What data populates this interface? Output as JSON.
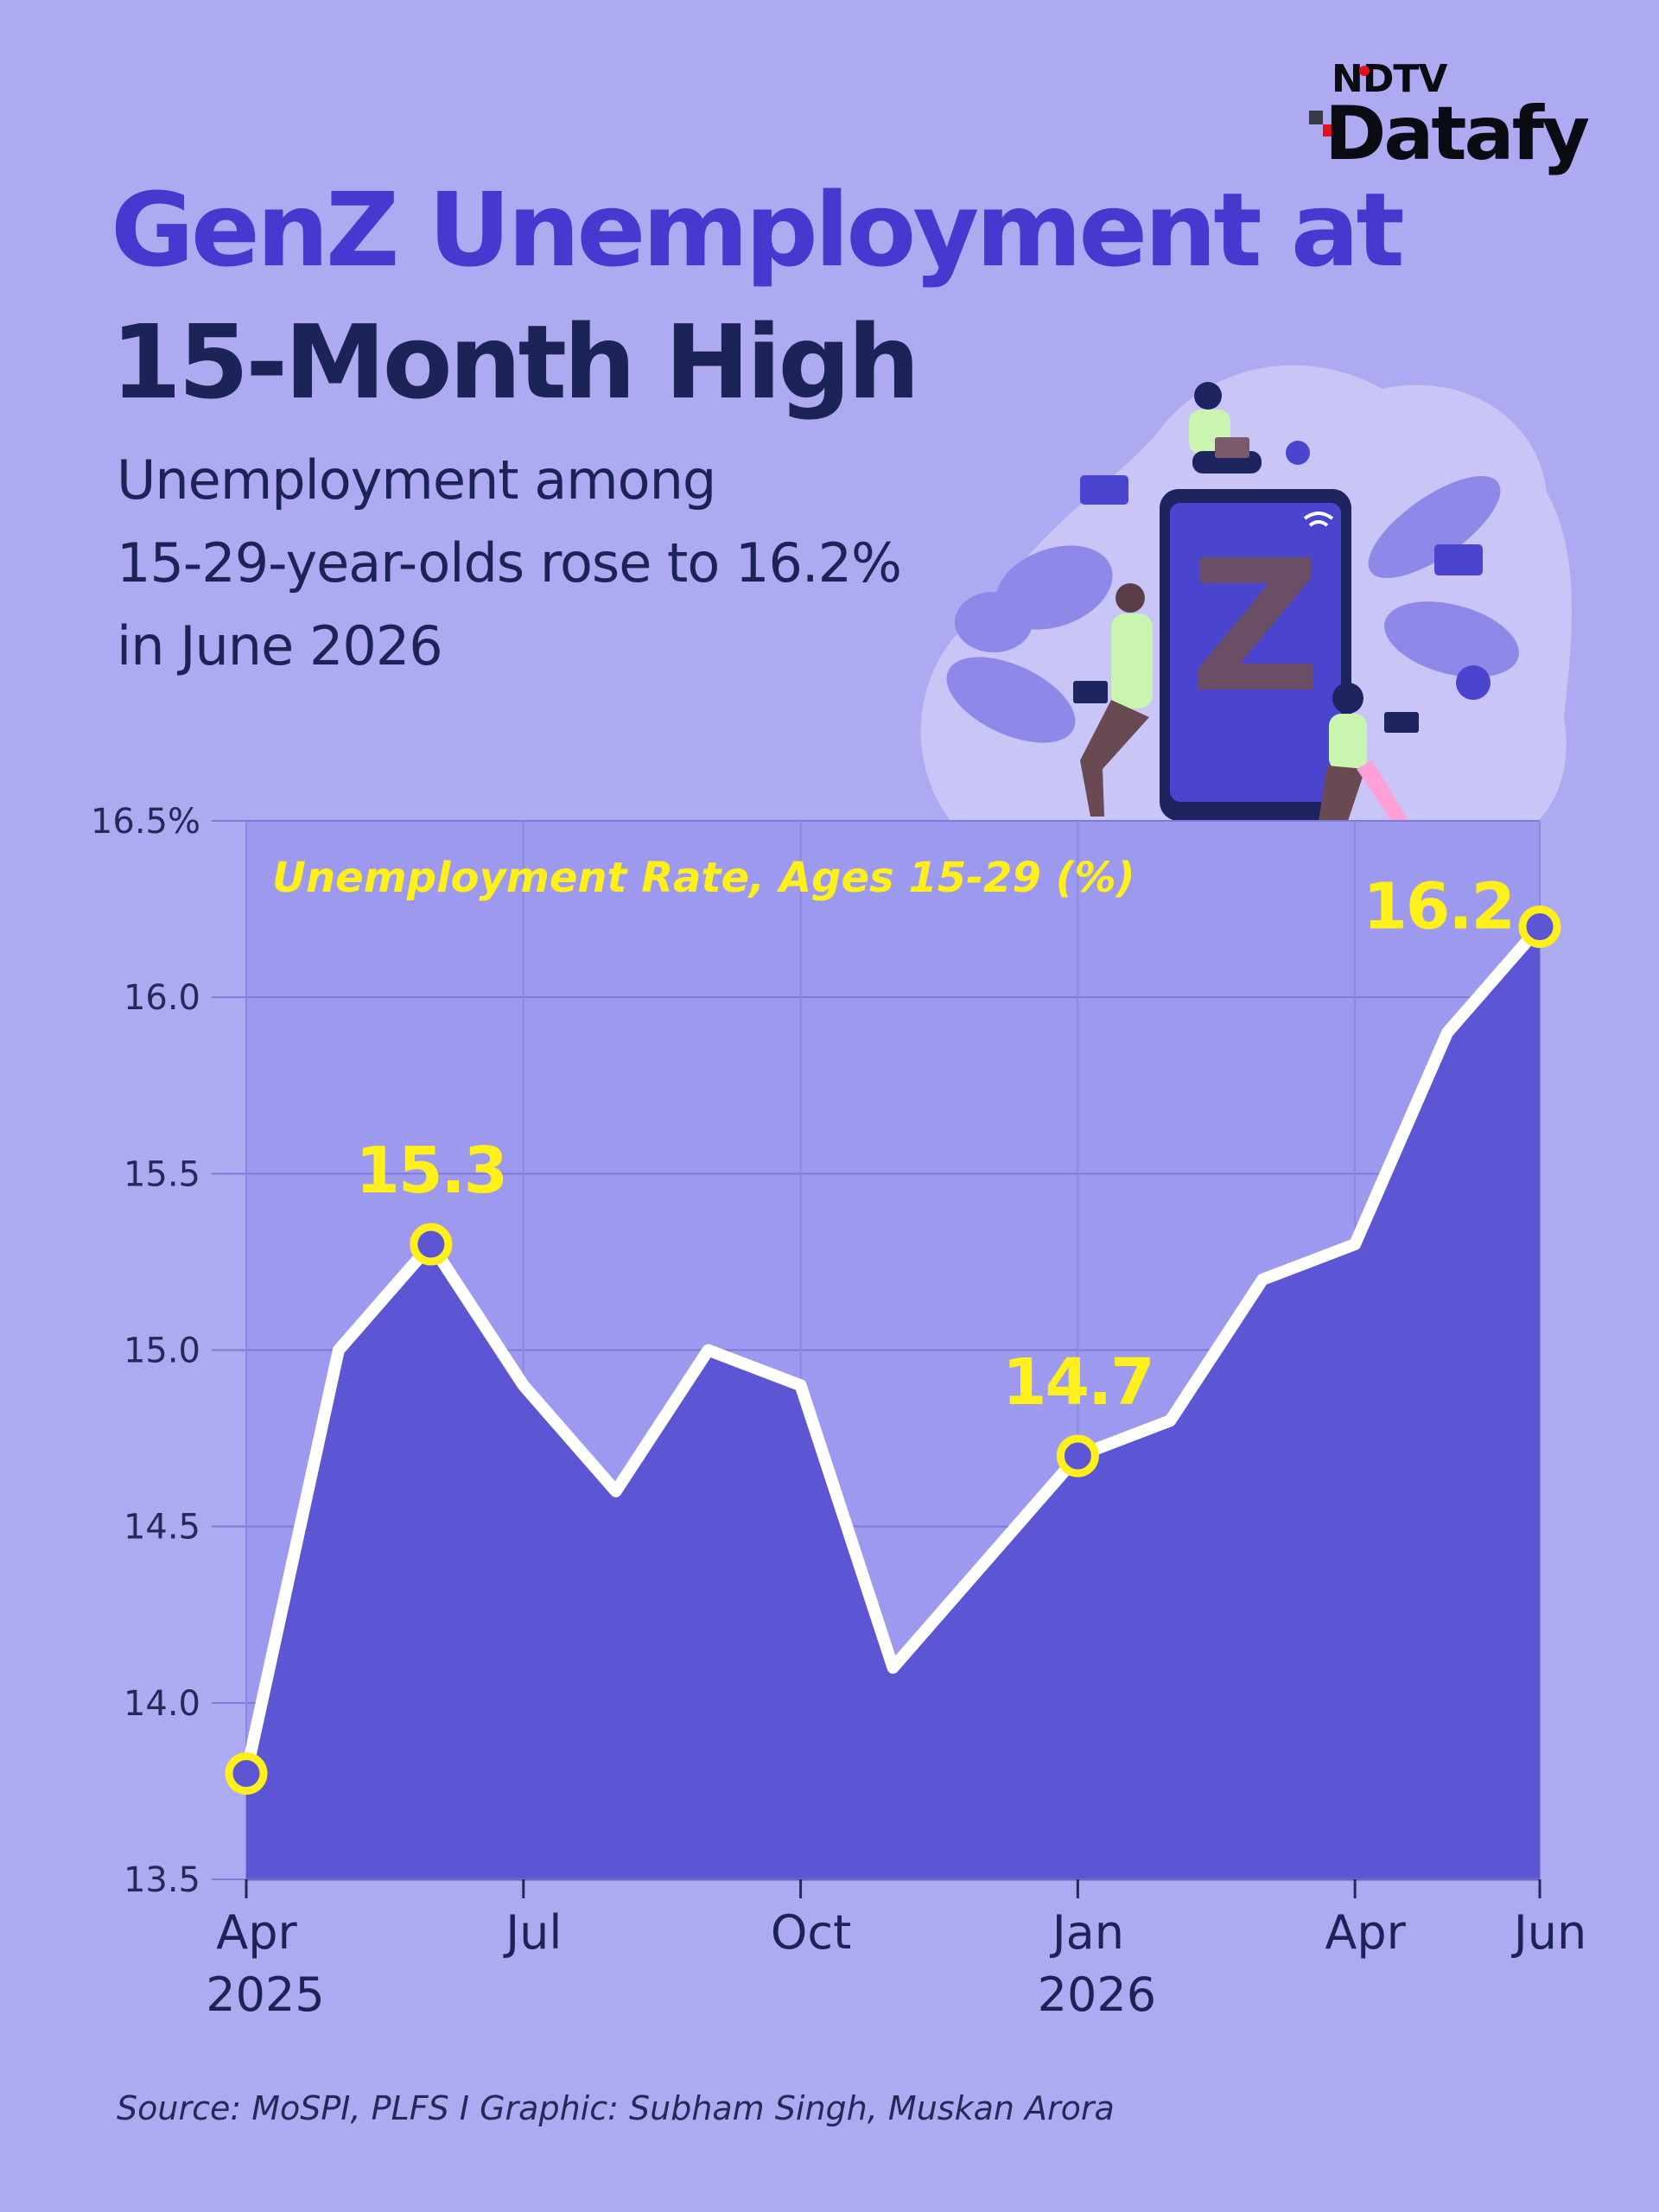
{
  "brand": {
    "top": "NDTV",
    "main": "Datafy"
  },
  "headline": {
    "line1": "GenZ Unemployment at",
    "line2": "15-Month High"
  },
  "subtitle": {
    "line1": "Unemployment among",
    "line2": "15-29-year-olds rose to 16.2%",
    "line3": "in June 2026"
  },
  "illustration_text": "Z",
  "source": "Source: MoSPI, PLFS I Graphic: Subham Singh, Muskan Arora",
  "colors": {
    "background": "#aeaaf1",
    "plot_bg": "#9d99ef",
    "area": "#5c55d4",
    "line": "#ffffff",
    "highlight": "#ffef1a",
    "title_accent": "#4639cf",
    "text_dark": "#1c2357"
  },
  "chart_data": {
    "type": "area",
    "title": "Unemployment Rate, Ages 15-29 (%)",
    "x": [
      "2025-04",
      "2025-05",
      "2025-06",
      "2025-07",
      "2025-08",
      "2025-09",
      "2025-10",
      "2025-11",
      "2025-12",
      "2026-01",
      "2026-02",
      "2026-03",
      "2026-04",
      "2026-05",
      "2026-06"
    ],
    "values": [
      13.8,
      15.0,
      15.3,
      14.9,
      14.6,
      15.0,
      14.9,
      14.1,
      14.4,
      14.7,
      14.8,
      15.2,
      15.3,
      15.9,
      16.2
    ],
    "ylim": [
      13.5,
      16.5
    ],
    "y_ticks": [
      "16.5%",
      "16.0",
      "15.5",
      "15.0",
      "14.5",
      "14.0",
      "13.5"
    ],
    "y_tick_values": [
      16.5,
      16.0,
      15.5,
      15.0,
      14.5,
      14.0,
      13.5
    ],
    "x_ticks": [
      {
        "month": "2025-04",
        "label": "Apr",
        "year": "2025"
      },
      {
        "month": "2025-07",
        "label": "Jul",
        "year": ""
      },
      {
        "month": "2025-10",
        "label": "Oct",
        "year": ""
      },
      {
        "month": "2026-01",
        "label": "Jan",
        "year": "2026"
      },
      {
        "month": "2026-04",
        "label": "Apr",
        "year": ""
      },
      {
        "month": "2026-06",
        "label": "Jun",
        "year": ""
      }
    ],
    "highlights": [
      {
        "month": "2025-04",
        "label": ""
      },
      {
        "month": "2025-06",
        "label": "15.3"
      },
      {
        "month": "2026-01",
        "label": "14.7"
      },
      {
        "month": "2026-06",
        "label": "16.2"
      }
    ],
    "grid": true
  }
}
